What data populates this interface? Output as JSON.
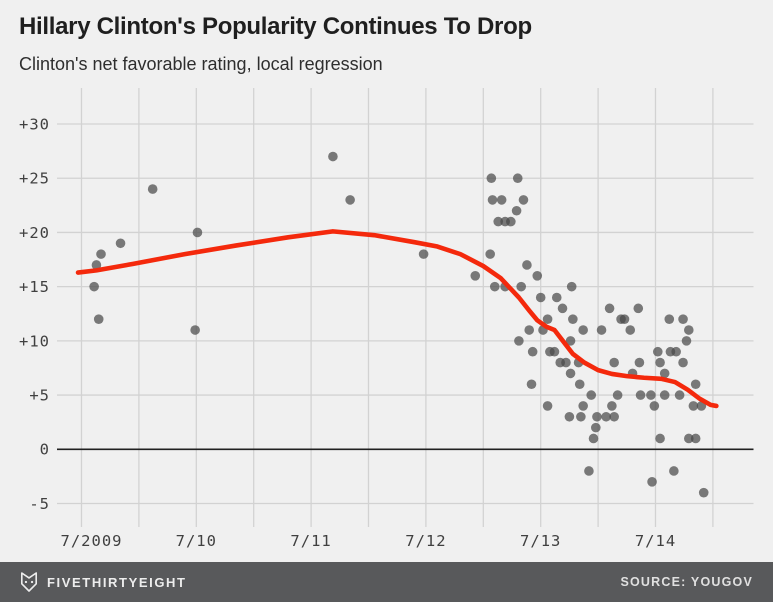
{
  "header": {
    "title": "Hillary Clinton's Popularity Continues To Drop",
    "subtitle": "Clinton's net favorable rating, local regression"
  },
  "footer": {
    "brand": "FIVETHIRTYEIGHT",
    "source": "SOURCE: YOUGOV"
  },
  "colors": {
    "background": "#f0f0f0",
    "gridline": "#d2d2d2",
    "zero_line": "#212121",
    "tick_text": "#404040",
    "dot": "#4a4a4a",
    "trend": "#f4290c",
    "footer_bg": "#58595b",
    "footer_text": "#ededed"
  },
  "chart_data": {
    "type": "scatter",
    "title": "Hillary Clinton's Popularity Continues To Drop",
    "subtitle": "Clinton's net favorable rating, local regression",
    "x_axis": {
      "unit": "years since 7/2009",
      "ticks": [
        {
          "label": "7/2009",
          "t": 0,
          "dx": 10
        },
        {
          "label": "7/10",
          "t": 1
        },
        {
          "label": "7/11",
          "t": 2
        },
        {
          "label": "7/12",
          "t": 3
        },
        {
          "label": "7/13",
          "t": 4
        },
        {
          "label": "7/14",
          "t": 5
        }
      ],
      "gridlines": {
        "from": 0,
        "to": 5.5,
        "step": 0.5
      }
    },
    "y_axis": {
      "ticks": [
        {
          "label": "+30",
          "value": 30
        },
        {
          "label": "+25",
          "value": 25
        },
        {
          "label": "+20",
          "value": 20
        },
        {
          "label": "+15",
          "value": 15
        },
        {
          "label": "+10",
          "value": 10
        },
        {
          "label": "+5",
          "value": 5
        },
        {
          "label": "0",
          "value": 0
        },
        {
          "label": "-5",
          "value": -5
        }
      ],
      "ylim": [
        -7.5,
        32.5
      ]
    },
    "point_style": {
      "radius": 4.8,
      "opacity": 0.72
    },
    "points": [
      [
        0.11,
        15
      ],
      [
        0.13,
        17
      ],
      [
        0.17,
        18
      ],
      [
        0.15,
        12
      ],
      [
        0.34,
        19
      ],
      [
        0.62,
        24
      ],
      [
        0.99,
        11
      ],
      [
        1.01,
        20
      ],
      [
        2.19,
        27
      ],
      [
        2.34,
        23
      ],
      [
        2.98,
        18
      ],
      [
        3.43,
        16
      ],
      [
        3.57,
        25
      ],
      [
        3.8,
        25
      ],
      [
        3.58,
        23
      ],
      [
        3.66,
        23
      ],
      [
        3.85,
        23
      ],
      [
        3.79,
        22
      ],
      [
        3.63,
        21
      ],
      [
        3.69,
        21
      ],
      [
        3.74,
        21
      ],
      [
        3.56,
        18
      ],
      [
        3.88,
        17
      ],
      [
        3.97,
        16
      ],
      [
        3.6,
        15
      ],
      [
        3.69,
        15
      ],
      [
        3.83,
        15
      ],
      [
        4.27,
        15
      ],
      [
        4.0,
        14
      ],
      [
        4.14,
        14
      ],
      [
        4.19,
        13
      ],
      [
        4.6,
        13
      ],
      [
        4.85,
        13
      ],
      [
        4.06,
        12
      ],
      [
        4.28,
        12
      ],
      [
        4.7,
        12
      ],
      [
        4.73,
        12
      ],
      [
        5.12,
        12
      ],
      [
        5.24,
        12
      ],
      [
        3.81,
        10
      ],
      [
        3.9,
        11
      ],
      [
        4.02,
        11
      ],
      [
        4.37,
        11
      ],
      [
        4.53,
        11
      ],
      [
        4.78,
        11
      ],
      [
        5.29,
        11
      ],
      [
        4.26,
        10
      ],
      [
        5.27,
        10
      ],
      [
        3.93,
        9
      ],
      [
        4.08,
        9
      ],
      [
        4.12,
        9
      ],
      [
        5.02,
        9
      ],
      [
        5.13,
        9
      ],
      [
        5.18,
        9
      ],
      [
        4.17,
        8
      ],
      [
        4.22,
        8
      ],
      [
        4.33,
        8
      ],
      [
        4.64,
        8
      ],
      [
        4.86,
        8
      ],
      [
        5.04,
        8
      ],
      [
        5.24,
        8
      ],
      [
        4.8,
        7
      ],
      [
        5.08,
        7
      ],
      [
        4.26,
        7
      ],
      [
        4.34,
        6
      ],
      [
        3.92,
        6
      ],
      [
        5.35,
        6
      ],
      [
        4.44,
        5
      ],
      [
        4.67,
        5
      ],
      [
        4.87,
        5
      ],
      [
        4.96,
        5
      ],
      [
        5.08,
        5
      ],
      [
        5.21,
        5
      ],
      [
        4.06,
        4
      ],
      [
        4.37,
        4
      ],
      [
        4.62,
        4
      ],
      [
        4.99,
        4
      ],
      [
        5.33,
        4
      ],
      [
        5.4,
        4
      ],
      [
        4.25,
        3
      ],
      [
        4.35,
        3
      ],
      [
        4.49,
        3
      ],
      [
        4.57,
        3
      ],
      [
        4.64,
        3
      ],
      [
        4.48,
        2
      ],
      [
        4.46,
        1
      ],
      [
        5.04,
        1
      ],
      [
        5.29,
        1
      ],
      [
        5.35,
        1
      ],
      [
        4.42,
        -2
      ],
      [
        5.16,
        -2
      ],
      [
        4.97,
        -3
      ],
      [
        5.42,
        -4
      ]
    ],
    "trend": {
      "name": "local regression",
      "points": [
        [
          -0.03,
          16.3
        ],
        [
          0.13,
          16.5
        ],
        [
          0.45,
          17.1
        ],
        [
          0.9,
          18.0
        ],
        [
          1.35,
          18.8
        ],
        [
          1.8,
          19.55
        ],
        [
          2.19,
          20.1
        ],
        [
          2.55,
          19.75
        ],
        [
          2.9,
          19.1
        ],
        [
          3.1,
          18.7
        ],
        [
          3.3,
          18.0
        ],
        [
          3.5,
          16.9
        ],
        [
          3.65,
          15.8
        ],
        [
          3.81,
          14.0
        ],
        [
          3.9,
          12.8
        ],
        [
          3.97,
          11.9
        ],
        [
          4.05,
          11.3
        ],
        [
          4.12,
          11.0
        ],
        [
          4.2,
          9.9
        ],
        [
          4.28,
          8.8
        ],
        [
          4.38,
          8.0
        ],
        [
          4.5,
          7.3
        ],
        [
          4.62,
          6.95
        ],
        [
          4.75,
          6.75
        ],
        [
          4.9,
          6.6
        ],
        [
          5.05,
          6.5
        ],
        [
          5.17,
          6.2
        ],
        [
          5.28,
          5.5
        ],
        [
          5.38,
          4.7
        ],
        [
          5.48,
          4.1
        ],
        [
          5.53,
          4.0
        ]
      ]
    }
  }
}
